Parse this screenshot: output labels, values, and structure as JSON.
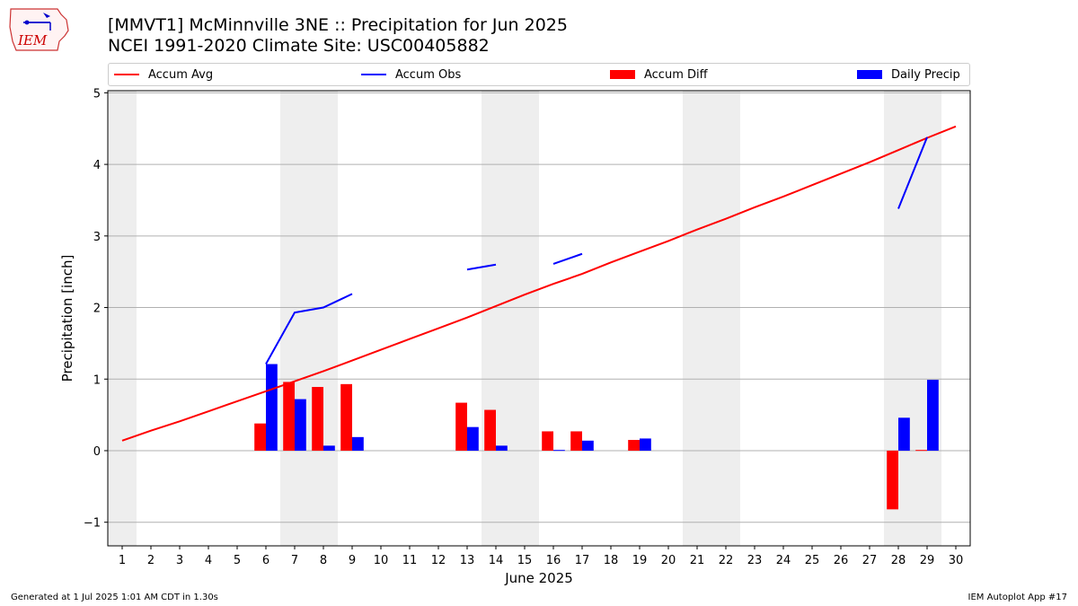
{
  "title_line1": "[MMVT1] McMinnville 3NE :: Precipitation for Jun 2025",
  "title_line2": "NCEI 1991-2020 Climate Site: USC00405882",
  "logo_text": "IEM",
  "legend": [
    {
      "label": "Accum Avg",
      "kind": "line",
      "color": "#ff0000"
    },
    {
      "label": "Accum Obs",
      "kind": "line",
      "color": "#0000ff"
    },
    {
      "label": "Accum Diff",
      "kind": "box",
      "color": "#ff0000"
    },
    {
      "label": "Daily Precip",
      "kind": "box",
      "color": "#0000ff"
    }
  ],
  "footer_left": "Generated at 1 Jul 2025 1:01 AM CDT in 1.30s",
  "footer_right": "IEM Autoplot App #17",
  "chart_data": {
    "type": "bar",
    "xlabel": "June 2025",
    "ylabel": "Precipitation [inch]",
    "ylim": [
      -1.33,
      5.03
    ],
    "xlim": [
      0.5,
      30.5
    ],
    "yticks": [
      -1,
      0,
      1,
      2,
      3,
      4,
      5
    ],
    "ytick_labels": [
      "−1",
      "0",
      "1",
      "2",
      "3",
      "4",
      "5"
    ],
    "days": [
      1,
      2,
      3,
      4,
      5,
      6,
      7,
      8,
      9,
      10,
      11,
      12,
      13,
      14,
      15,
      16,
      17,
      18,
      19,
      20,
      21,
      22,
      23,
      24,
      25,
      26,
      27,
      28,
      29,
      30
    ],
    "weekend_shading": [
      [
        1,
        1
      ],
      [
        7,
        8
      ],
      [
        14,
        15
      ],
      [
        21,
        22
      ],
      [
        28,
        29
      ]
    ],
    "grid": "horizontal",
    "series": [
      {
        "name": "Accum Avg",
        "type": "line",
        "color": "#ff0000",
        "values": [
          0.14,
          0.28,
          0.41,
          0.55,
          0.69,
          0.83,
          0.97,
          1.11,
          1.26,
          1.41,
          1.56,
          1.71,
          1.86,
          2.02,
          2.18,
          2.33,
          2.47,
          2.63,
          2.78,
          2.93,
          3.09,
          3.24,
          3.4,
          3.55,
          3.71,
          3.87,
          4.03,
          4.2,
          4.37,
          4.53
        ]
      },
      {
        "name": "Accum Obs",
        "type": "line",
        "color": "#0000ff",
        "values": [
          null,
          null,
          null,
          null,
          null,
          1.21,
          1.93,
          2.0,
          2.19,
          null,
          null,
          null,
          2.53,
          2.6,
          null,
          2.61,
          2.75,
          null,
          null,
          null,
          null,
          null,
          null,
          null,
          null,
          null,
          null,
          3.38,
          4.38,
          null
        ]
      },
      {
        "name": "Accum Diff",
        "type": "bar",
        "color": "#ff0000",
        "values": [
          0,
          0,
          0,
          0,
          0,
          0.38,
          0.96,
          0.89,
          0.93,
          0,
          0,
          0,
          0.67,
          0.57,
          0,
          0.27,
          0.27,
          0,
          0.15,
          0,
          0,
          0,
          0,
          0,
          0,
          0,
          0,
          -0.82,
          0.01,
          0
        ]
      },
      {
        "name": "Daily Precip",
        "type": "bar",
        "color": "#0000ff",
        "values": [
          0,
          0,
          0,
          0,
          0,
          1.21,
          0.72,
          0.07,
          0.19,
          0,
          0,
          0,
          0.33,
          0.07,
          0,
          0.01,
          0.14,
          0,
          0.17,
          0,
          0,
          0,
          0,
          0,
          0,
          0,
          0,
          0.46,
          0.99,
          0
        ]
      }
    ]
  }
}
